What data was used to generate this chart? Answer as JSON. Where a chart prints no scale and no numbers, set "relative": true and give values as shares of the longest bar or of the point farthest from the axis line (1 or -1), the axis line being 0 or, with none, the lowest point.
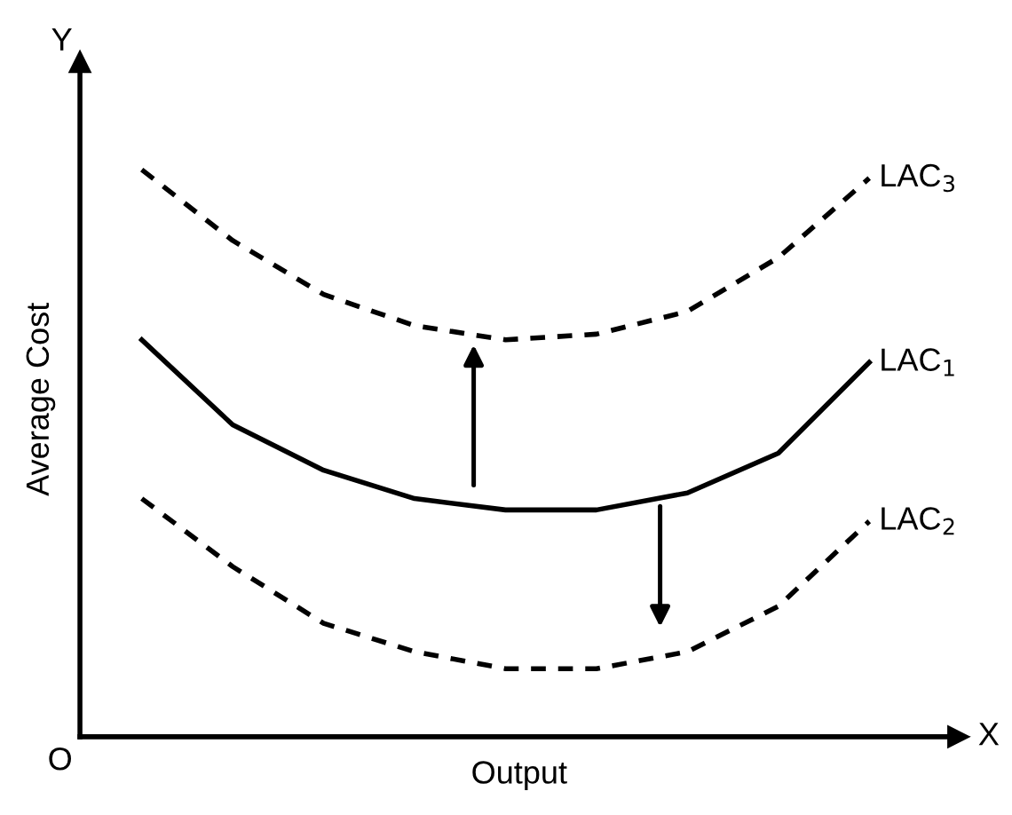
{
  "chart_data": {
    "type": "line",
    "relative": true,
    "xlabel": "Output",
    "ylabel": "Average Cost",
    "categories": [
      null,
      null,
      null,
      null,
      null,
      null,
      null,
      null,
      null
    ],
    "series": [
      {
        "name": "LAC$_{3}$",
        "color": "#000000",
        "line_style": "dashed",
        "values": [
          1.0,
          0.875,
          0.78,
          0.725,
          0.7,
          0.71,
          0.75,
          0.845,
          0.985
        ]
      },
      {
        "name": "LAC$_{1}$",
        "color": "#000000",
        "line_style": "solid",
        "values": [
          0.7,
          0.55,
          0.47,
          0.42,
          0.4,
          0.4,
          0.43,
          0.5,
          0.66
        ]
      },
      {
        "name": "LAC$_{2}$",
        "color": "#000000",
        "line_style": "dashed",
        "values": [
          0.42,
          0.3,
          0.2,
          0.15,
          0.12,
          0.12,
          0.15,
          0.23,
          0.38
        ]
      }
    ],
    "annotations": [
      "Y",
      "X",
      "O"
    ],
    "grid": false,
    "legend": false,
    "marker": "none"
  }
}
